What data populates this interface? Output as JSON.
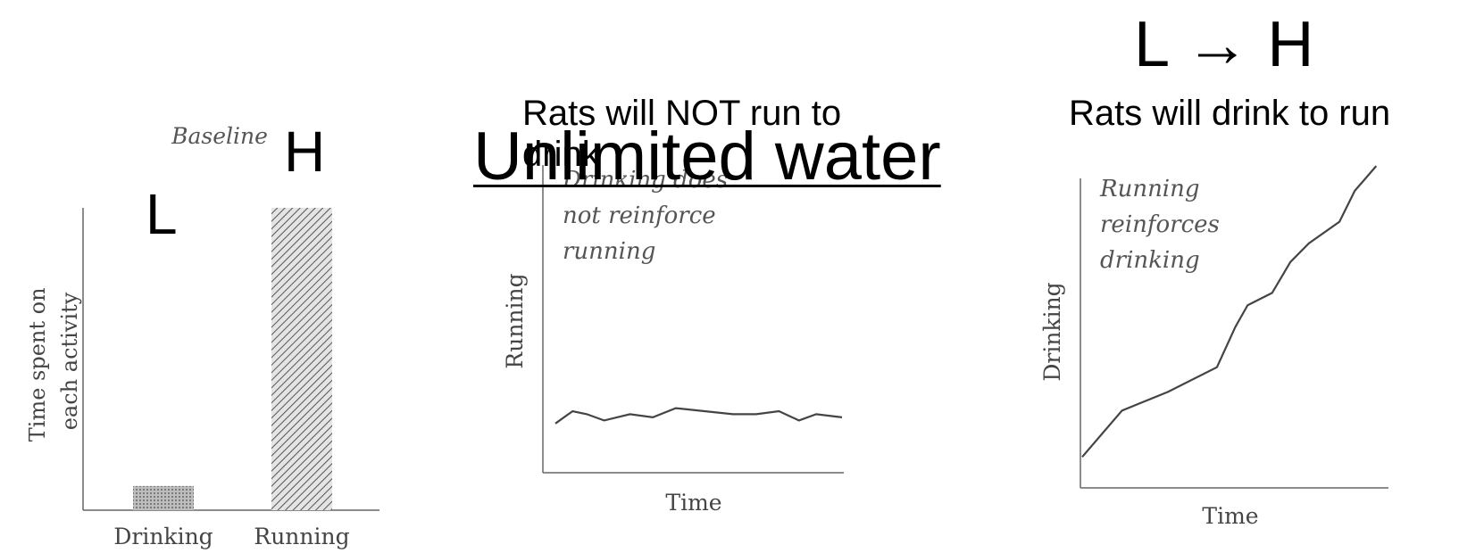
{
  "overlay": {
    "heading_title": "Unlimited water",
    "rats_not_run": "Rats will NOT run to drink",
    "rats_drink": "Rats will drink to run",
    "l_to_h": "L → H",
    "letter_low": "L",
    "letter_high": "H"
  },
  "chart_data": [
    {
      "type": "bar",
      "title": "Baseline",
      "categories": [
        "Drinking",
        "Running"
      ],
      "values": [
        8,
        100
      ],
      "ylabel": "Time spent on each activity",
      "xlabel": "",
      "ylim": [
        0,
        100
      ],
      "grid": false,
      "legend": "none"
    },
    {
      "type": "line",
      "annotation": "Drinking does not reinforce running",
      "xlabel": "Time",
      "ylabel": "Running",
      "xlim": [
        0,
        10
      ],
      "ylim": [
        0,
        100
      ],
      "x": [
        0,
        0.6,
        1.1,
        1.7,
        2.6,
        3.4,
        4.2,
        5.2,
        6.2,
        7.0,
        7.8,
        8.5,
        9.1,
        10
      ],
      "y": [
        16,
        20,
        19,
        17,
        19,
        18,
        21,
        20,
        19,
        19,
        20,
        17,
        19,
        18
      ],
      "grid": false
    },
    {
      "type": "line",
      "annotation": "Running reinforces drinking",
      "xlabel": "Time",
      "ylabel": "Drinking",
      "xlim": [
        0,
        10
      ],
      "ylim": [
        0,
        100
      ],
      "x": [
        0,
        1.3,
        2.8,
        4.4,
        5.0,
        5.4,
        6.2,
        6.8,
        7.4,
        8.4,
        8.9,
        9.6
      ],
      "y": [
        10,
        25,
        31,
        39,
        52,
        59,
        63,
        73,
        79,
        86,
        96,
        104
      ],
      "grid": false
    }
  ]
}
